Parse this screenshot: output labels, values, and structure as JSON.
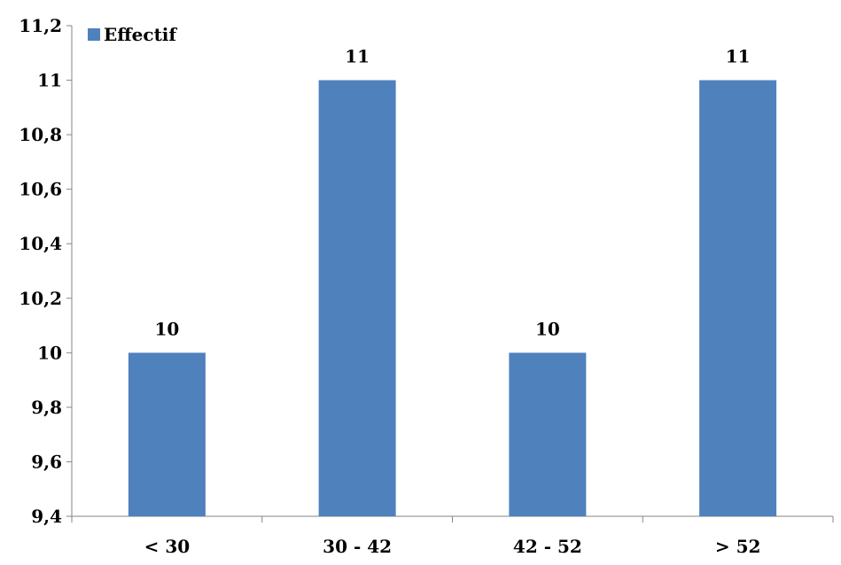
{
  "chart_data": {
    "type": "bar",
    "categories": [
      "< 30",
      "30 - 42",
      "42 - 52",
      "> 52"
    ],
    "series": [
      {
        "name": "Effectif",
        "values": [
          10,
          11,
          10,
          11
        ],
        "color": "#4f81bd"
      }
    ],
    "data_labels": [
      "10",
      "11",
      "10",
      "11"
    ],
    "yticks": [
      "9,4",
      "9,6",
      "9,8",
      "10",
      "10,2",
      "10,4",
      "10,6",
      "10,8",
      "11",
      "11,2"
    ],
    "ylim": [
      9.4,
      11.2
    ],
    "ystep": 0.2,
    "grid": false,
    "legend": {
      "position": "top-left",
      "label": "Effectif"
    }
  }
}
